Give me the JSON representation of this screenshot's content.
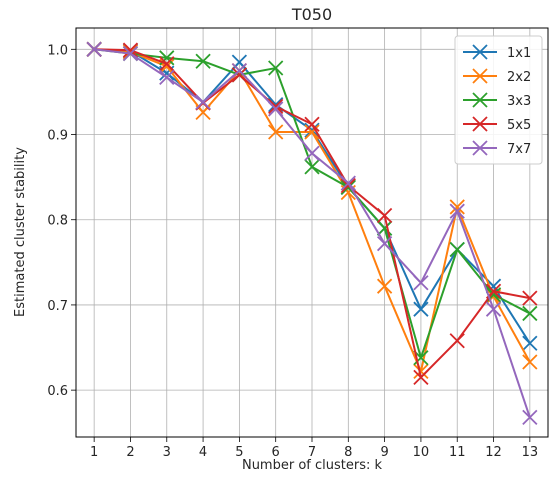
{
  "chart_data": {
    "type": "line",
    "title": "T050",
    "xlabel": "Number of clusters: k",
    "ylabel": "Estimated cluster stability",
    "x": [
      1,
      2,
      3,
      4,
      5,
      6,
      7,
      8,
      9,
      10,
      11,
      12,
      13
    ],
    "xlim": [
      0.5,
      13.5
    ],
    "ylim": [
      0.545,
      1.025
    ],
    "yticks": [
      "0.6",
      "0.7",
      "0.8",
      "0.9",
      "1.0"
    ],
    "xticks": [
      "1",
      "2",
      "3",
      "4",
      "5",
      "6",
      "7",
      "8",
      "9",
      "10",
      "11",
      "12",
      "13"
    ],
    "grid": true,
    "legend_position": "top-right",
    "marker": "x",
    "series": [
      {
        "name": "1x1",
        "color": "#1f77b4",
        "values": [
          1.0,
          0.998,
          0.972,
          0.938,
          0.985,
          0.935,
          0.905,
          0.838,
          0.79,
          0.695,
          0.765,
          0.722,
          0.655
        ]
      },
      {
        "name": "2x2",
        "color": "#ff7f0e",
        "values": [
          1.0,
          0.997,
          0.98,
          0.926,
          0.975,
          0.903,
          0.903,
          0.832,
          0.722,
          0.622,
          0.815,
          0.71,
          0.633
        ]
      },
      {
        "name": "3x3",
        "color": "#2ca02c",
        "values": [
          1.0,
          0.995,
          0.99,
          0.986,
          0.97,
          0.978,
          0.862,
          0.838,
          0.79,
          0.638,
          0.765,
          0.712,
          0.69
        ]
      },
      {
        "name": "5x5",
        "color": "#d62728",
        "values": [
          1.0,
          0.999,
          0.983,
          0.937,
          0.97,
          0.933,
          0.912,
          0.84,
          0.805,
          0.615,
          0.658,
          0.716,
          0.708
        ]
      },
      {
        "name": "7x7",
        "color": "#9467bd",
        "values": [
          1.0,
          0.995,
          0.967,
          0.938,
          0.975,
          0.93,
          0.878,
          0.843,
          0.772,
          0.726,
          0.81,
          0.695,
          0.568
        ]
      }
    ]
  }
}
